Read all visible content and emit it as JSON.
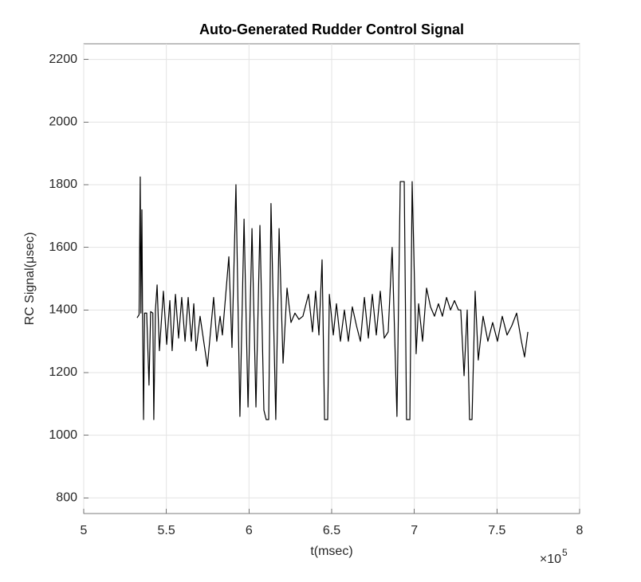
{
  "chart_data": {
    "type": "line",
    "title": "Auto-Generated Rudder Control Signal",
    "x_label": "t(msec)",
    "y_label": "RC Signal(μsec)",
    "x_multiplier": "×10",
    "x_multiplier_exponent": "5",
    "xlim": [
      500000,
      800000
    ],
    "ylim": [
      750,
      2250
    ],
    "xticks": [
      {
        "value": 500000,
        "label": "5"
      },
      {
        "value": 550000,
        "label": "5.5"
      },
      {
        "value": 600000,
        "label": "6"
      },
      {
        "value": 650000,
        "label": "6.5"
      },
      {
        "value": 700000,
        "label": "7"
      },
      {
        "value": 750000,
        "label": "7.5"
      },
      {
        "value": 800000,
        "label": "8"
      }
    ],
    "yticks": [
      800,
      1000,
      1200,
      1400,
      1600,
      1800,
      2000,
      2200
    ],
    "grid": true,
    "series": [
      {
        "color": "#000000",
        "x": [
          532300,
          533500,
          534200,
          534600,
          535200,
          535600,
          536200,
          536800,
          538100,
          539500,
          540500,
          541800,
          542400,
          543400,
          544400,
          545800,
          548200,
          550200,
          552100,
          553500,
          555500,
          557400,
          559300,
          561300,
          563200,
          565100,
          566600,
          568000,
          570400,
          574800,
          578600,
          580500,
          582500,
          583900,
          587800,
          589700,
          592100,
          594500,
          597000,
          599400,
          601800,
          604200,
          606600,
          609000,
          610400,
          611900,
          613300,
          616200,
          618200,
          620600,
          623000,
          625400,
          627800,
          630200,
          632600,
          636000,
          638400,
          640300,
          642300,
          644200,
          644700,
          645700,
          647600,
          648600,
          651000,
          652900,
          655300,
          657700,
          660100,
          662500,
          665000,
          667400,
          669800,
          672200,
          674600,
          677000,
          679400,
          681800,
          684200,
          686600,
          689500,
          691500,
          693900,
          695300,
          697300,
          698700,
          701100,
          702600,
          705000,
          707400,
          709800,
          712200,
          714600,
          717000,
          719500,
          721900,
          724300,
          726700,
          728100,
          730100,
          732000,
          733400,
          734900,
          736800,
          738700,
          741600,
          744500,
          747400,
          750300,
          753200,
          756100,
          759000,
          761900,
          764800,
          766700,
          768700
        ],
        "values": [
          1375,
          1385,
          1825,
          1390,
          1720,
          1385,
          1050,
          1390,
          1390,
          1160,
          1395,
          1390,
          1050,
          1400,
          1480,
          1270,
          1460,
          1290,
          1430,
          1270,
          1450,
          1310,
          1440,
          1300,
          1440,
          1300,
          1420,
          1270,
          1380,
          1220,
          1440,
          1300,
          1380,
          1320,
          1570,
          1280,
          1800,
          1060,
          1690,
          1090,
          1660,
          1090,
          1670,
          1080,
          1050,
          1050,
          1740,
          1050,
          1660,
          1230,
          1470,
          1360,
          1390,
          1370,
          1380,
          1450,
          1330,
          1460,
          1320,
          1560,
          1400,
          1050,
          1050,
          1450,
          1320,
          1420,
          1300,
          1400,
          1300,
          1410,
          1350,
          1300,
          1440,
          1310,
          1450,
          1320,
          1460,
          1310,
          1330,
          1600,
          1060,
          1810,
          1810,
          1050,
          1050,
          1810,
          1260,
          1420,
          1300,
          1470,
          1410,
          1380,
          1420,
          1380,
          1440,
          1400,
          1430,
          1400,
          1400,
          1190,
          1400,
          1050,
          1050,
          1460,
          1240,
          1380,
          1300,
          1360,
          1300,
          1380,
          1320,
          1350,
          1390,
          1300,
          1250,
          1330
        ]
      }
    ]
  }
}
